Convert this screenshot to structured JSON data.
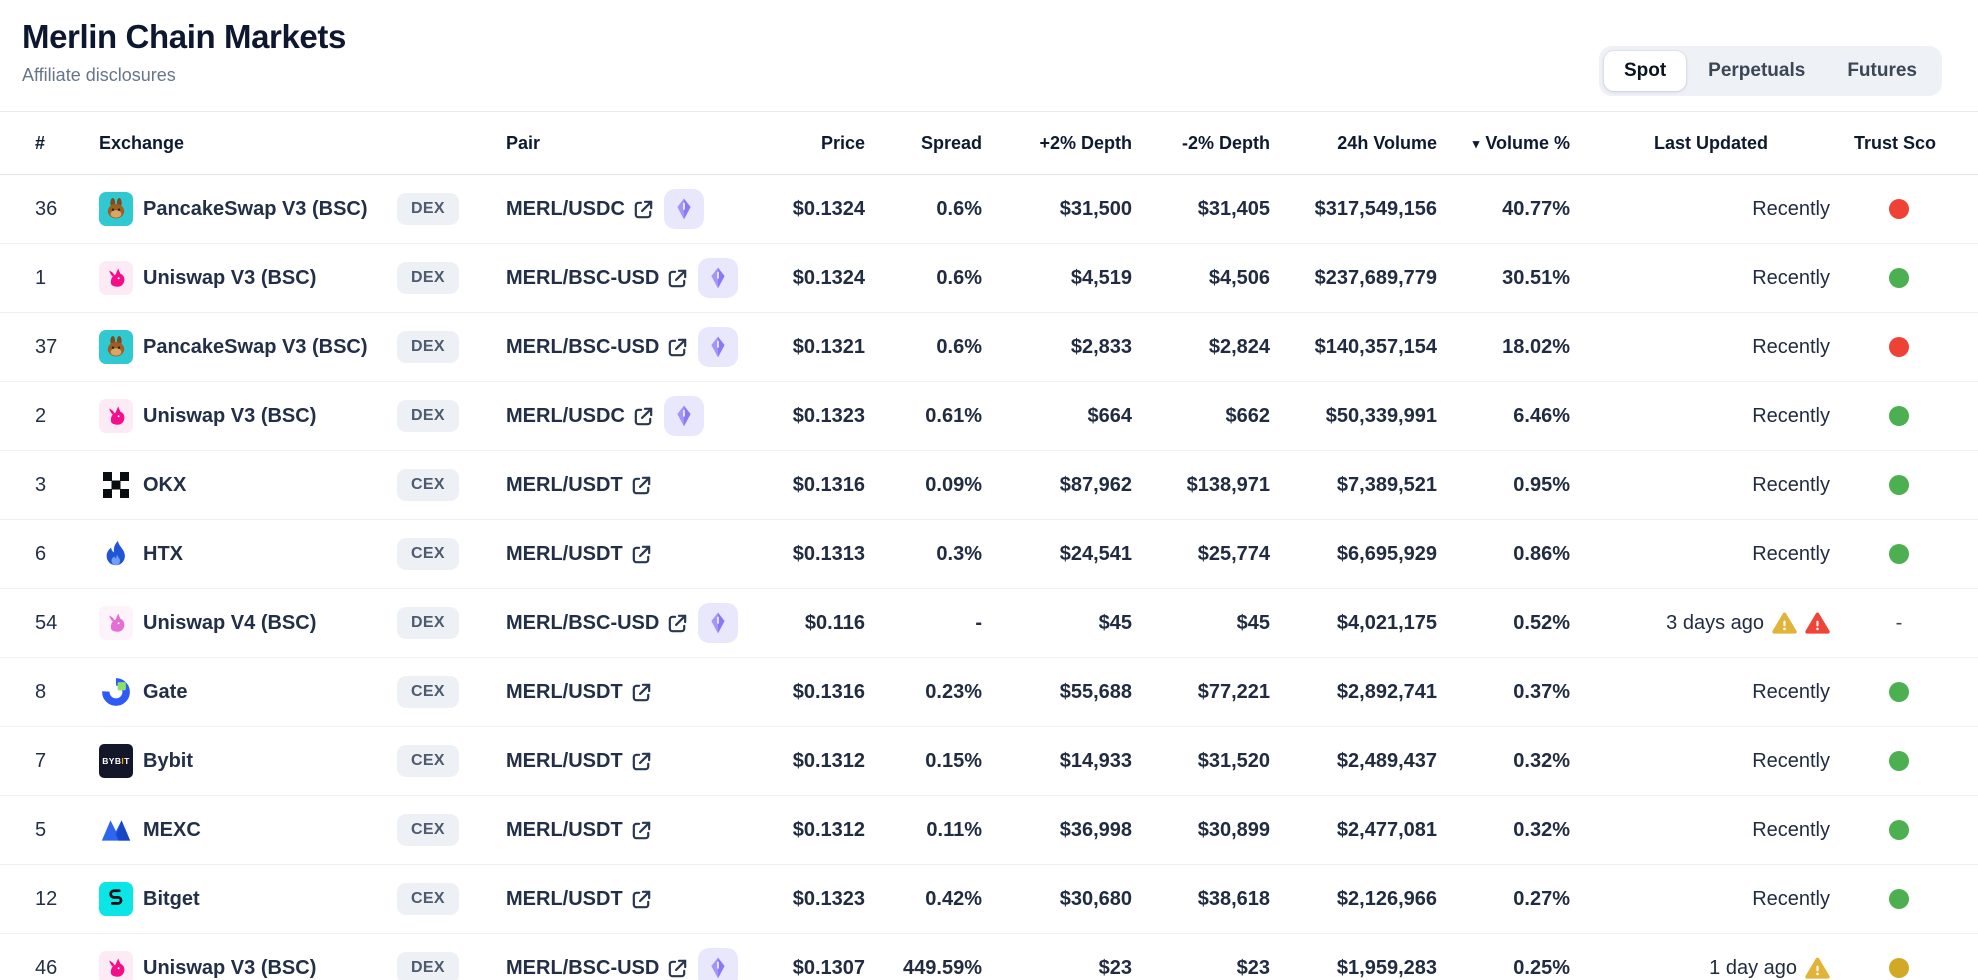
{
  "header": {
    "title": "Merlin Chain Markets",
    "subtitle": "Affiliate disclosures"
  },
  "tabs": [
    {
      "label": "Spot",
      "active": true
    },
    {
      "label": "Perpetuals",
      "active": false
    },
    {
      "label": "Futures",
      "active": false
    }
  ],
  "table": {
    "columns": [
      "#",
      "Exchange",
      "Pair",
      "Price",
      "Spread",
      "+2% Depth",
      "-2% Depth",
      "24h Volume",
      "Volume %",
      "Last Updated",
      "Trust Sco"
    ],
    "sort": {
      "column": "Volume %",
      "direction": "desc",
      "indicator": "▾"
    },
    "rows": [
      {
        "rank": "36",
        "exchange": "PancakeSwap V3 (BSC)",
        "icon": "pancakeswap-icon",
        "type": "DEX",
        "pair": "MERL/USDC",
        "network_badge": true,
        "price": "$0.1324",
        "spread": "0.6%",
        "depth_plus": "$31,500",
        "depth_minus": "$31,405",
        "volume_24h": "$317,549,156",
        "volume_pct": "40.77%",
        "last_updated": "Recently",
        "warnings": [],
        "trust": "red"
      },
      {
        "rank": "1",
        "exchange": "Uniswap V3 (BSC)",
        "icon": "uniswap-icon",
        "type": "DEX",
        "pair": "MERL/BSC-USD",
        "network_badge": true,
        "price": "$0.1324",
        "spread": "0.6%",
        "depth_plus": "$4,519",
        "depth_minus": "$4,506",
        "volume_24h": "$237,689,779",
        "volume_pct": "30.51%",
        "last_updated": "Recently",
        "warnings": [],
        "trust": "green"
      },
      {
        "rank": "37",
        "exchange": "PancakeSwap V3 (BSC)",
        "icon": "pancakeswap-icon",
        "type": "DEX",
        "pair": "MERL/BSC-USD",
        "network_badge": true,
        "price": "$0.1321",
        "spread": "0.6%",
        "depth_plus": "$2,833",
        "depth_minus": "$2,824",
        "volume_24h": "$140,357,154",
        "volume_pct": "18.02%",
        "last_updated": "Recently",
        "warnings": [],
        "trust": "red"
      },
      {
        "rank": "2",
        "exchange": "Uniswap V3 (BSC)",
        "icon": "uniswap-icon",
        "type": "DEX",
        "pair": "MERL/USDC",
        "network_badge": true,
        "price": "$0.1323",
        "spread": "0.61%",
        "depth_plus": "$664",
        "depth_minus": "$662",
        "volume_24h": "$50,339,991",
        "volume_pct": "6.46%",
        "last_updated": "Recently",
        "warnings": [],
        "trust": "green"
      },
      {
        "rank": "3",
        "exchange": "OKX",
        "icon": "okx-icon",
        "type": "CEX",
        "pair": "MERL/USDT",
        "network_badge": false,
        "price": "$0.1316",
        "spread": "0.09%",
        "depth_plus": "$87,962",
        "depth_minus": "$138,971",
        "volume_24h": "$7,389,521",
        "volume_pct": "0.95%",
        "last_updated": "Recently",
        "warnings": [],
        "trust": "green"
      },
      {
        "rank": "6",
        "exchange": "HTX",
        "icon": "htx-icon",
        "type": "CEX",
        "pair": "MERL/USDT",
        "network_badge": false,
        "price": "$0.1313",
        "spread": "0.3%",
        "depth_plus": "$24,541",
        "depth_minus": "$25,774",
        "volume_24h": "$6,695,929",
        "volume_pct": "0.86%",
        "last_updated": "Recently",
        "warnings": [],
        "trust": "green"
      },
      {
        "rank": "54",
        "exchange": "Uniswap V4 (BSC)",
        "icon": "uniswap-v4-icon",
        "type": "DEX",
        "pair": "MERL/BSC-USD",
        "network_badge": true,
        "price": "$0.116",
        "spread": "-",
        "depth_plus": "$45",
        "depth_minus": "$45",
        "volume_24h": "$4,021,175",
        "volume_pct": "0.52%",
        "last_updated": "3 days ago",
        "warnings": [
          "yellow",
          "red"
        ],
        "trust": "dash"
      },
      {
        "rank": "8",
        "exchange": "Gate",
        "icon": "gate-icon",
        "type": "CEX",
        "pair": "MERL/USDT",
        "network_badge": false,
        "price": "$0.1316",
        "spread": "0.23%",
        "depth_plus": "$55,688",
        "depth_minus": "$77,221",
        "volume_24h": "$2,892,741",
        "volume_pct": "0.37%",
        "last_updated": "Recently",
        "warnings": [],
        "trust": "green"
      },
      {
        "rank": "7",
        "exchange": "Bybit",
        "icon": "bybit-icon",
        "type": "CEX",
        "pair": "MERL/USDT",
        "network_badge": false,
        "price": "$0.1312",
        "spread": "0.15%",
        "depth_plus": "$14,933",
        "depth_minus": "$31,520",
        "volume_24h": "$2,489,437",
        "volume_pct": "0.32%",
        "last_updated": "Recently",
        "warnings": [],
        "trust": "green"
      },
      {
        "rank": "5",
        "exchange": "MEXC",
        "icon": "mexc-icon",
        "type": "CEX",
        "pair": "MERL/USDT",
        "network_badge": false,
        "price": "$0.1312",
        "spread": "0.11%",
        "depth_plus": "$36,998",
        "depth_minus": "$30,899",
        "volume_24h": "$2,477,081",
        "volume_pct": "0.32%",
        "last_updated": "Recently",
        "warnings": [],
        "trust": "green"
      },
      {
        "rank": "12",
        "exchange": "Bitget",
        "icon": "bitget-icon",
        "type": "CEX",
        "pair": "MERL/USDT",
        "network_badge": false,
        "price": "$0.1323",
        "spread": "0.42%",
        "depth_plus": "$30,680",
        "depth_minus": "$38,618",
        "volume_24h": "$2,126,966",
        "volume_pct": "0.27%",
        "last_updated": "Recently",
        "warnings": [],
        "trust": "green"
      },
      {
        "rank": "46",
        "exchange": "Uniswap V3 (BSC)",
        "icon": "uniswap-icon",
        "type": "DEX",
        "pair": "MERL/BSC-USD",
        "network_badge": true,
        "price": "$0.1307",
        "spread": "449.59%",
        "depth_plus": "$23",
        "depth_minus": "$23",
        "volume_24h": "$1,959,283",
        "volume_pct": "0.25%",
        "last_updated": "1 day ago",
        "warnings": [
          "yellow"
        ],
        "trust": "yellow"
      }
    ]
  },
  "colors": {
    "trust_green": "#4caf50",
    "trust_red": "#ee4237",
    "trust_yellow": "#d2a927",
    "warning_yellow": "#e2b33a",
    "warning_red": "#f04438",
    "network_badge_purple": "#8b78f6"
  }
}
